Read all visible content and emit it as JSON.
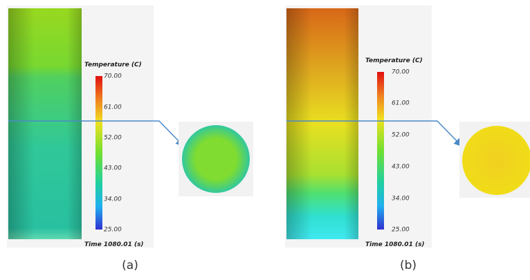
{
  "panels": [
    {
      "legend_title": "Temperature (C)",
      "ticks": [
        "70.00",
        "61.00",
        "52.00",
        "43.00",
        "34.00",
        "25.00"
      ],
      "time": "Time 1080.01 (s)",
      "caption": "(a)"
    },
    {
      "legend_title": "Temperature (C)",
      "ticks": [
        "70.00",
        "61.00",
        "52.00",
        "43.00",
        "34.00",
        "25.00"
      ],
      "time": "Time 1080.01 (s)",
      "caption": "(b)"
    }
  ]
}
